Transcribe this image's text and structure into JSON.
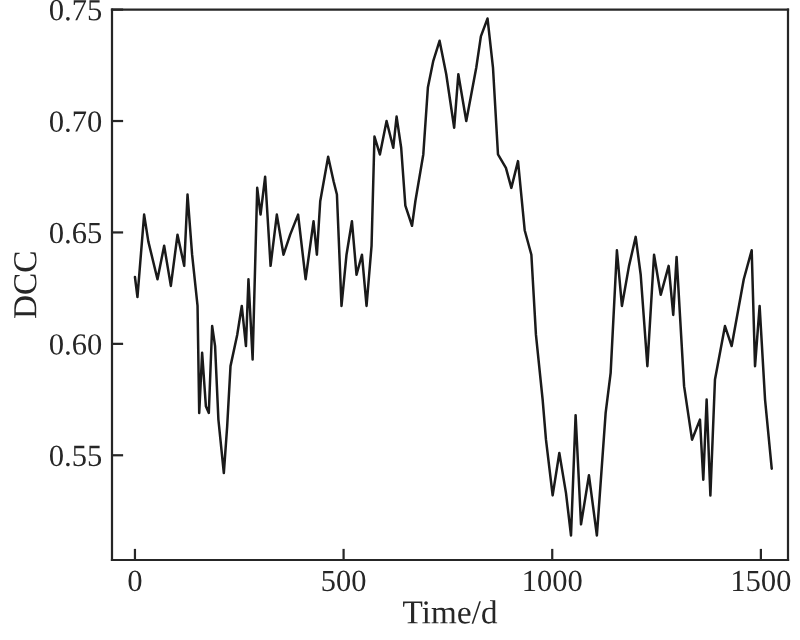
{
  "chart_data": {
    "type": "line",
    "xlabel": "Time/d",
    "ylabel": "DCC",
    "xlim": [
      -55,
      1565
    ],
    "xticks": [
      0,
      500,
      1000,
      1500
    ],
    "ylim": [
      0.503,
      0.75
    ],
    "yticks": [
      0.55,
      {
        "value": 0.6,
        "label": "0.60"
      },
      0.65,
      {
        "value": 0.7,
        "label": "0.70"
      },
      0.75
    ],
    "grid": false,
    "legend": false,
    "series": [
      {
        "color": "#1a1a1a",
        "x": [
          0,
          6,
          22,
          32,
          54,
          70,
          86,
          102,
          118,
          126,
          137,
          150,
          154,
          161,
          170,
          177,
          185,
          192,
          200,
          213,
          221,
          229,
          245,
          256,
          266,
          272,
          282,
          293,
          301,
          312,
          325,
          340,
          356,
          372,
          391,
          409,
          428,
          436,
          444,
          463,
          476,
          484,
          495,
          507,
          520,
          531,
          544,
          555,
          567,
          574,
          587,
          603,
          619,
          627,
          638,
          648,
          664,
          672,
          691,
          702,
          715,
          730,
          746,
          765,
          775,
          794,
          818,
          829,
          845,
          858,
          870,
          889,
          902,
          918,
          934,
          950,
          961,
          977,
          985,
          1001,
          1017,
          1033,
          1045,
          1056,
          1069,
          1088,
          1107,
          1128,
          1140,
          1155,
          1167,
          1184,
          1200,
          1212,
          1228,
          1244,
          1260,
          1279,
          1290,
          1298,
          1316,
          1335,
          1354,
          1362,
          1370,
          1379,
          1390,
          1414,
          1430,
          1459,
          1478,
          1486,
          1497,
          1510,
          1526
        ],
        "values": [
          0.63,
          0.621,
          0.658,
          0.646,
          0.629,
          0.644,
          0.626,
          0.649,
          0.635,
          0.667,
          0.64,
          0.617,
          0.569,
          0.596,
          0.572,
          0.569,
          0.608,
          0.599,
          0.566,
          0.542,
          0.563,
          0.59,
          0.604,
          0.617,
          0.599,
          0.629,
          0.593,
          0.67,
          0.658,
          0.675,
          0.635,
          0.658,
          0.64,
          0.649,
          0.658,
          0.629,
          0.655,
          0.64,
          0.664,
          0.684,
          0.673,
          0.667,
          0.617,
          0.64,
          0.655,
          0.631,
          0.64,
          0.617,
          0.644,
          0.693,
          0.685,
          0.7,
          0.688,
          0.702,
          0.688,
          0.662,
          0.653,
          0.664,
          0.685,
          0.715,
          0.727,
          0.736,
          0.721,
          0.697,
          0.721,
          0.7,
          0.724,
          0.738,
          0.746,
          0.724,
          0.685,
          0.679,
          0.67,
          0.682,
          0.651,
          0.64,
          0.604,
          0.575,
          0.557,
          0.532,
          0.551,
          0.533,
          0.514,
          0.568,
          0.519,
          0.541,
          0.514,
          0.569,
          0.587,
          0.642,
          0.617,
          0.635,
          0.648,
          0.631,
          0.59,
          0.64,
          0.622,
          0.635,
          0.613,
          0.639,
          0.581,
          0.557,
          0.566,
          0.539,
          0.575,
          0.532,
          0.584,
          0.608,
          0.599,
          0.629,
          0.642,
          0.59,
          0.617,
          0.575,
          0.544
        ]
      }
    ]
  }
}
